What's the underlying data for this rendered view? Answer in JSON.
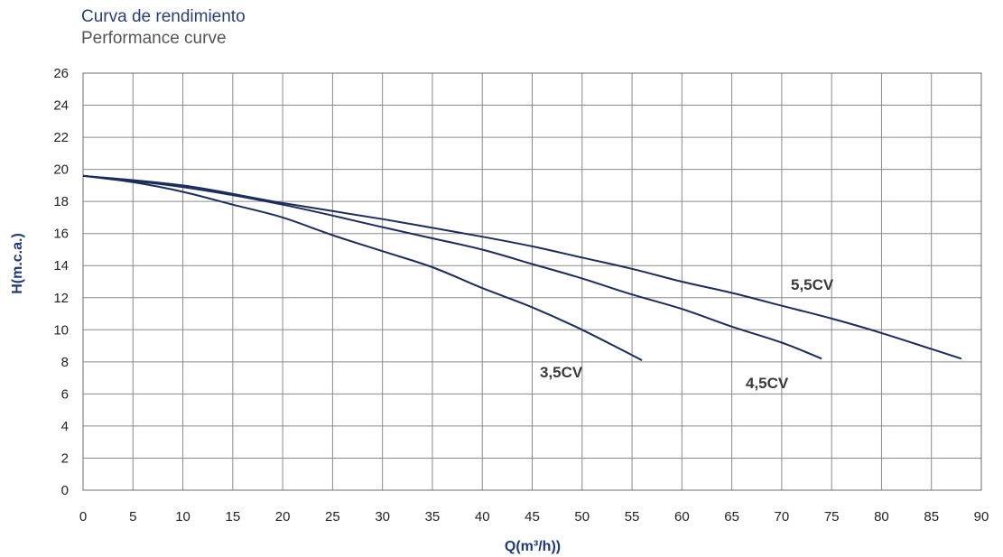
{
  "chart_data": {
    "type": "line",
    "title": "Curva de rendimiento",
    "subtitle": "Performance curve",
    "xlabel": "Q(m³/h))",
    "ylabel": "H(m.c.a.)",
    "xlim": [
      0,
      90
    ],
    "ylim": [
      0,
      26
    ],
    "xticks": [
      0,
      5,
      10,
      15,
      20,
      25,
      30,
      35,
      40,
      45,
      50,
      55,
      60,
      65,
      70,
      75,
      80,
      85,
      90
    ],
    "yticks": [
      0,
      2,
      4,
      6,
      8,
      10,
      12,
      14,
      16,
      18,
      20,
      22,
      24,
      26
    ],
    "grid": true,
    "line_color": "#1b2d5c",
    "series": [
      {
        "name": "3,5CV",
        "x": [
          0,
          5,
          10,
          15,
          20,
          25,
          30,
          35,
          40,
          45,
          50,
          56
        ],
        "y": [
          19.6,
          19.2,
          18.6,
          17.8,
          17.0,
          15.9,
          14.9,
          13.9,
          12.6,
          11.4,
          10.0,
          8.1
        ]
      },
      {
        "name": "4,5CV",
        "x": [
          0,
          10,
          20,
          30,
          35,
          40,
          45,
          50,
          55,
          60,
          65,
          70,
          74
        ],
        "y": [
          19.6,
          18.9,
          17.8,
          16.4,
          15.7,
          15.0,
          14.1,
          13.2,
          12.2,
          11.3,
          10.2,
          9.2,
          8.2
        ]
      },
      {
        "name": "5,5CV",
        "x": [
          0,
          10,
          20,
          30,
          40,
          45,
          50,
          55,
          60,
          65,
          70,
          75,
          80,
          85,
          88
        ],
        "y": [
          19.6,
          19.0,
          17.9,
          16.9,
          15.8,
          15.2,
          14.5,
          13.8,
          13.0,
          12.3,
          11.5,
          10.7,
          9.8,
          8.8,
          8.2
        ]
      }
    ]
  }
}
